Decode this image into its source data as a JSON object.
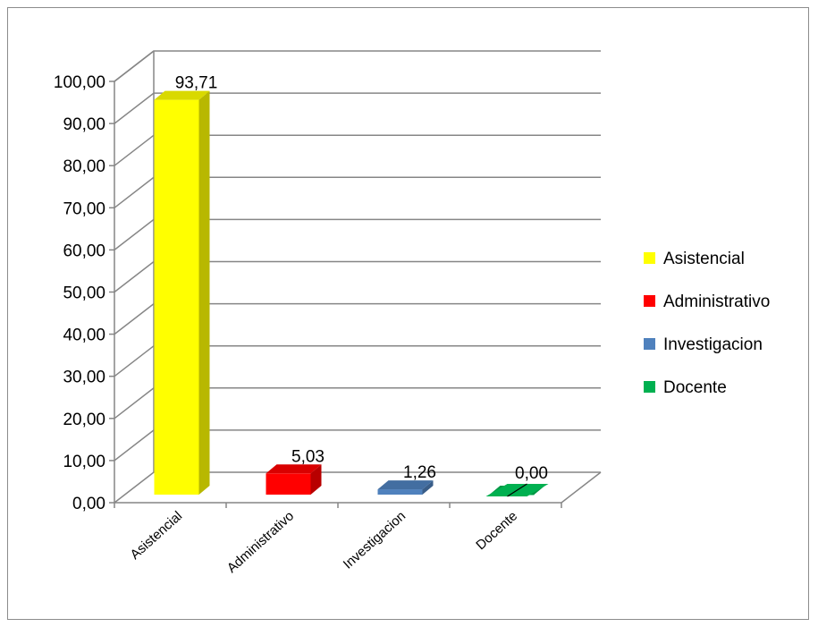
{
  "chart_data": {
    "type": "bar",
    "variant": "3d-clustered-column",
    "categories": [
      "Asistencial",
      "Administrativo",
      "Investigacion",
      "Docente"
    ],
    "values": [
      93.71,
      5.03,
      1.26,
      0.0
    ],
    "data_labels": [
      "93,71",
      "5,03",
      "1,26",
      "0,00"
    ],
    "colors": [
      "#ffff00",
      "#ff0000",
      "#4f81bd",
      "#00b050"
    ],
    "ylim": [
      0,
      100
    ],
    "y_ticks": [
      0,
      10,
      20,
      30,
      40,
      50,
      60,
      70,
      80,
      90,
      100
    ],
    "y_tick_labels": [
      "0,00",
      "10,00",
      "20,00",
      "30,00",
      "40,00",
      "50,00",
      "60,00",
      "70,00",
      "80,00",
      "90,00",
      "100,00"
    ],
    "grid": true,
    "legend_position": "right",
    "legend": [
      {
        "label": "Asistencial",
        "color": "#ffff00"
      },
      {
        "label": "Administrativo",
        "color": "#ff0000"
      },
      {
        "label": "Investigacion",
        "color": "#4f81bd"
      },
      {
        "label": "Docente",
        "color": "#00b050"
      }
    ]
  }
}
